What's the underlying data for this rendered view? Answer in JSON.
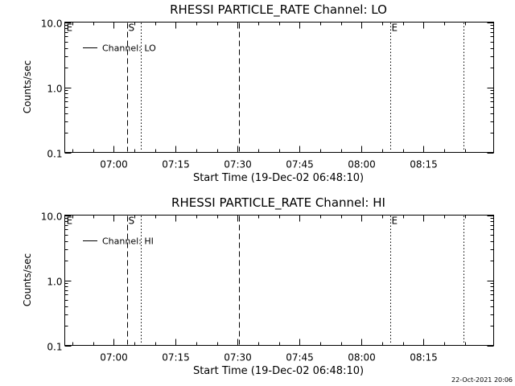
{
  "footer_timestamp": "22-Oct-2021 20:06",
  "chart_data": [
    {
      "type": "line",
      "title": "RHESSI PARTICLE_RATE Channel: LO",
      "xlabel": "Start Time (19-Dec-02 06:48:10)",
      "ylabel": "Counts/sec",
      "yscale": "log",
      "ylim": [
        0.1,
        10.0
      ],
      "yticks": [
        "0.1",
        "1.0",
        "10.0"
      ],
      "xlim": [
        "06:48:10",
        "08:32:00"
      ],
      "xticks": [
        "07:00",
        "07:15",
        "07:30",
        "07:45",
        "08:00",
        "08:15"
      ],
      "legend": "top-left",
      "series": [
        {
          "name": "Channel: LO",
          "values": []
        }
      ],
      "markers": [
        {
          "label": "E",
          "style": "none",
          "time": "06:48:10"
        },
        {
          "label": "S",
          "style": "dashed",
          "time": "07:03:20"
        },
        {
          "label": "",
          "style": "dotted",
          "time": "07:06:30"
        },
        {
          "label": "",
          "style": "dashed",
          "time": "07:30:20"
        },
        {
          "label": "E",
          "style": "dotted",
          "time": "08:07:00"
        },
        {
          "label": "",
          "style": "dotted",
          "time": "08:24:40"
        }
      ]
    },
    {
      "type": "line",
      "title": "RHESSI PARTICLE_RATE Channel: HI",
      "xlabel": "Start Time (19-Dec-02 06:48:10)",
      "ylabel": "Counts/sec",
      "yscale": "log",
      "ylim": [
        0.1,
        10.0
      ],
      "yticks": [
        "0.1",
        "1.0",
        "10.0"
      ],
      "xlim": [
        "06:48:10",
        "08:32:00"
      ],
      "xticks": [
        "07:00",
        "07:15",
        "07:30",
        "07:45",
        "08:00",
        "08:15"
      ],
      "legend": "top-left",
      "series": [
        {
          "name": "Channel: HI",
          "values": []
        }
      ],
      "markers": [
        {
          "label": "E",
          "style": "none",
          "time": "06:48:10"
        },
        {
          "label": "S",
          "style": "dashed",
          "time": "07:03:20"
        },
        {
          "label": "",
          "style": "dotted",
          "time": "07:06:30"
        },
        {
          "label": "",
          "style": "dashed",
          "time": "07:30:20"
        },
        {
          "label": "E",
          "style": "dotted",
          "time": "08:07:00"
        },
        {
          "label": "",
          "style": "dotted",
          "time": "08:24:40"
        }
      ]
    }
  ]
}
